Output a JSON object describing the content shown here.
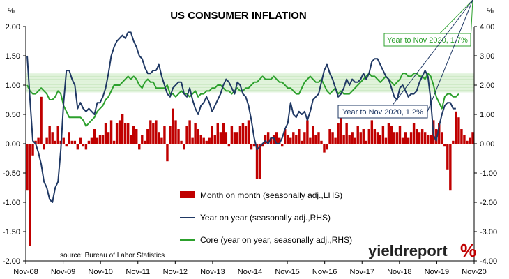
{
  "chart_data": {
    "type": "bar",
    "title": "US CONSUMER INFLATION",
    "left_unit": "%",
    "right_unit": "%",
    "source": "source: Bureau of Labor Statistics",
    "logo_text": "yieldreport",
    "logo_mark": "%",
    "colors": {
      "bar": "#c00000",
      "yoy": "#1f3864",
      "core": "#2ca02c",
      "band": "#d9f0d3"
    },
    "x_ticks": [
      "Nov-08",
      "Nov-09",
      "Nov-10",
      "Nov-11",
      "Nov-12",
      "Nov-13",
      "Nov-14",
      "Nov-15",
      "Nov-16",
      "Nov-17",
      "Nov-18",
      "Nov-19",
      "Nov-20"
    ],
    "y_left": {
      "min": -2.0,
      "max": 2.0,
      "ticks": [
        "-2.00",
        "-1.50",
        "-1.00",
        "-0.50",
        "0.00",
        "0.50",
        "1.00",
        "1.50",
        "2.00"
      ]
    },
    "y_right": {
      "min": -4.0,
      "max": 4.0,
      "ticks": [
        "-4.00",
        "-3.00",
        "-2.00",
        "-1.00",
        "0.00",
        "1.00",
        "2.00",
        "3.00",
        "4.00"
      ]
    },
    "target_band": [
      1.75,
      2.4
    ],
    "grid": false,
    "legend": [
      {
        "label": "Month on month (seasonally adj.,LHS)",
        "kind": "bar"
      },
      {
        "label": "Year on year (seasonally adj.,RHS)",
        "kind": "yoy"
      },
      {
        "label": "Core (year on year, seasonally adj.,RHS)",
        "kind": "core"
      }
    ],
    "annotations": [
      {
        "text": "Year to Nov 2020, 1.7%",
        "series": "core"
      },
      {
        "text": "Year to Nov 2020, 1.2%",
        "series": "yoy"
      }
    ],
    "series": [
      {
        "name": "Month on month (seasonally adj.,LHS)",
        "axis": "left",
        "type": "bar",
        "values": [
          -0.8,
          -1.75,
          -0.2,
          0.05,
          0.1,
          0.8,
          -0.1,
          0.1,
          0.3,
          0.2,
          0.05,
          0.3,
          0.05,
          0.1,
          -0.05,
          0.2,
          0.05,
          0.05,
          -0.1,
          0.1,
          -0.05,
          -0.1,
          0.05,
          0.1,
          0.25,
          0.1,
          0.15,
          0.15,
          0.35,
          0.2,
          0.4,
          0.05,
          0.35,
          0.4,
          0.5,
          0.35,
          0.35,
          0.15,
          0.3,
          0.25,
          -0.1,
          0.15,
          0.05,
          0.25,
          0.4,
          0.35,
          0.4,
          0.2,
          0.1,
          0.3,
          -0.3,
          0.3,
          0.6,
          0.4,
          0.25,
          0.05,
          -0.1,
          0.3,
          0.4,
          0.1,
          0.35,
          0.25,
          0.15,
          0.1,
          0.05,
          0.1,
          0.3,
          0.15,
          0.35,
          0.2,
          0.35,
          0.2,
          -0.05,
          0.3,
          0.2,
          0.2,
          0.3,
          0.35,
          0.3,
          0.4,
          -0.1,
          -0.05,
          -0.6,
          -0.6,
          -0.05,
          0.15,
          0.2,
          0.1,
          0.15,
          0.2,
          0.1,
          -0.05,
          0.25,
          0.15,
          0.1,
          0.2,
          0.15,
          0.25,
          0.05,
          0.2,
          0.4,
          0.1,
          0.3,
          0.15,
          0.2,
          0.05,
          -0.15,
          -0.1,
          0.25,
          0.2,
          0.1,
          0.35,
          0.45,
          0.15,
          0.35,
          0.15,
          0.2,
          0.1,
          0.3,
          0.2,
          0.25,
          0.05,
          0.25,
          0.4,
          0.25,
          0.2,
          0.15,
          0.3,
          0.1,
          0.35,
          0.3,
          0.2,
          0.2,
          0.3,
          0.1,
          0.2,
          0.1,
          0.2,
          0.35,
          0.25,
          0.2,
          0.25,
          0.2,
          0.15,
          0.15,
          0.4,
          0.25,
          0.35,
          0.2,
          -0.05,
          -0.45,
          -0.8,
          0.05,
          0.55,
          0.45,
          0.25,
          0.15,
          0.05,
          0.1,
          0.2
        ]
      },
      {
        "name": "Year on year (seasonally adj.,RHS)",
        "axis": "right",
        "type": "line",
        "values": [
          3.0,
          1.5,
          0.1,
          0.0,
          -0.3,
          -0.7,
          -1.3,
          -1.5,
          -1.9,
          -2.0,
          -1.5,
          -1.3,
          -0.2,
          1.4,
          2.5,
          2.5,
          2.2,
          2.0,
          1.2,
          1.4,
          1.2,
          1.1,
          1.2,
          1.1,
          1.0,
          1.4,
          1.4,
          1.6,
          1.9,
          2.4,
          3.0,
          3.3,
          3.5,
          3.6,
          3.7,
          3.6,
          3.8,
          3.8,
          3.5,
          3.3,
          3.0,
          2.9,
          2.6,
          2.4,
          2.4,
          2.5,
          2.5,
          2.7,
          2.3,
          2.0,
          1.7,
          1.6,
          1.9,
          2.0,
          2.1,
          2.1,
          1.7,
          1.6,
          1.9,
          1.5,
          1.2,
          1.0,
          1.3,
          1.4,
          1.6,
          1.4,
          1.1,
          1.3,
          1.5,
          1.7,
          2.0,
          2.2,
          2.1,
          1.9,
          1.7,
          2.1,
          2.0,
          1.7,
          1.6,
          1.3,
          0.8,
          0.2,
          -0.2,
          -0.1,
          0.0,
          0.1,
          0.0,
          0.2,
          0.2,
          0.0,
          0.0,
          0.2,
          0.5,
          0.7,
          1.4,
          1.0,
          0.9,
          1.1,
          1.0,
          1.1,
          0.8,
          1.1,
          1.5,
          1.6,
          1.7,
          2.1,
          2.5,
          2.7,
          2.4,
          2.2,
          1.9,
          1.6,
          1.7,
          1.9,
          2.2,
          2.0,
          2.2,
          2.1,
          2.1,
          2.2,
          2.4,
          2.2,
          2.4,
          2.8,
          2.9,
          2.9,
          2.7,
          2.5,
          2.3,
          2.2,
          1.9,
          1.6,
          1.5,
          1.9,
          2.0,
          1.8,
          1.6,
          1.7,
          1.7,
          1.8,
          2.1,
          2.3,
          2.5,
          2.3,
          1.5,
          0.3,
          0.1,
          0.6,
          1.0,
          1.3,
          1.4,
          1.4,
          1.2,
          1.2
        ]
      },
      {
        "name": "Core (year on year, seasonally adj.,RHS)",
        "axis": "right",
        "type": "line",
        "values": [
          2.0,
          1.8,
          1.7,
          1.7,
          1.8,
          1.9,
          1.8,
          1.7,
          1.5,
          1.5,
          1.6,
          1.8,
          1.7,
          1.3,
          1.1,
          0.9,
          0.9,
          0.9,
          0.9,
          0.9,
          0.8,
          0.6,
          0.7,
          0.8,
          0.9,
          1.1,
          1.2,
          1.3,
          1.5,
          1.6,
          1.8,
          2.0,
          2.0,
          2.0,
          2.1,
          2.2,
          2.3,
          2.2,
          2.3,
          2.2,
          2.0,
          1.9,
          2.1,
          2.2,
          2.1,
          2.1,
          1.9,
          1.9,
          1.9,
          1.9,
          2.0,
          1.7,
          1.7,
          1.6,
          1.7,
          1.8,
          1.7,
          1.7,
          1.6,
          1.7,
          1.8,
          1.6,
          1.7,
          1.7,
          1.8,
          1.8,
          1.9,
          1.9,
          2.0,
          2.0,
          1.9,
          1.8,
          1.8,
          1.7,
          1.8,
          1.9,
          1.8,
          1.8,
          1.9,
          1.9,
          2.0,
          2.1,
          2.1,
          2.2,
          2.3,
          2.2,
          2.2,
          2.2,
          2.3,
          2.2,
          2.1,
          2.1,
          2.0,
          1.9,
          1.9,
          1.8,
          1.7,
          1.7,
          1.9,
          2.1,
          2.2,
          2.3,
          2.2,
          2.1,
          2.1,
          2.2,
          2.0,
          1.8,
          1.7,
          1.8,
          1.9,
          1.7,
          1.8,
          1.7,
          1.7,
          1.7,
          1.8,
          1.9,
          2.0,
          2.1,
          2.2,
          2.3,
          2.4,
          2.3,
          2.3,
          2.2,
          2.1,
          2.2,
          2.3,
          2.2,
          2.1,
          2.0,
          2.1,
          2.2,
          2.4,
          2.4,
          2.3,
          2.3,
          2.4,
          2.4,
          2.3,
          2.3,
          2.2,
          2.4,
          2.3,
          2.0,
          1.6,
          1.4,
          1.2,
          1.6,
          1.7,
          1.7,
          1.6,
          1.6,
          1.7
        ]
      }
    ]
  }
}
